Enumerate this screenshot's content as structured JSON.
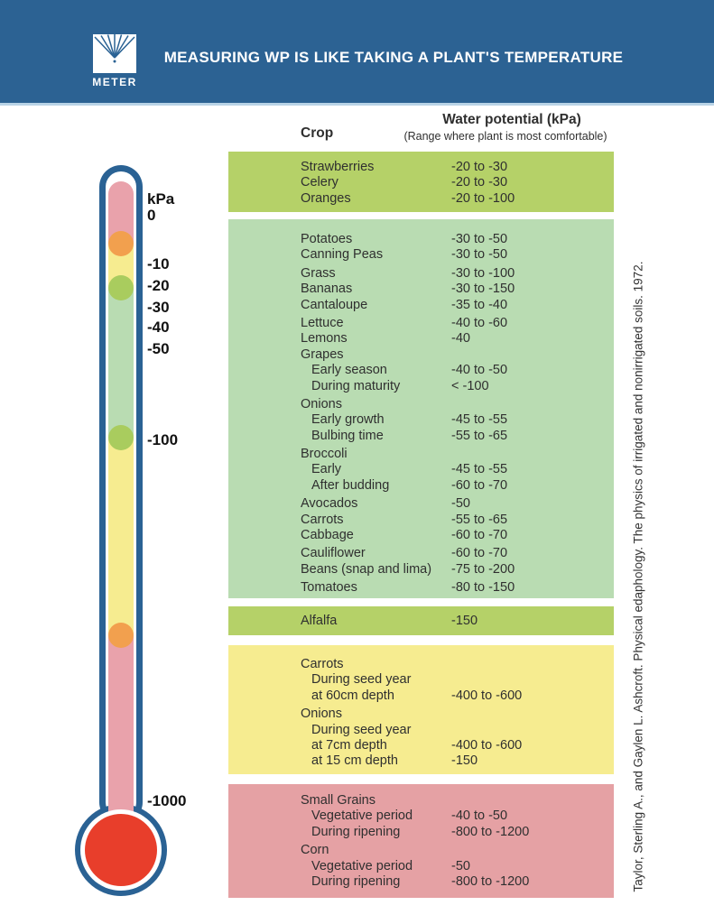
{
  "header": {
    "title": "MEASURING WP IS LIKE TAKING A PLANT'S TEMPERATURE",
    "logo_text": "METER"
  },
  "table": {
    "crop_header": "Crop",
    "wp_header": "Water potential (kPa)",
    "wp_subheader": "(Range where plant is most comfortable)",
    "blocks": [
      {
        "color": "yellow_green",
        "rows": [
          {
            "label": "Strawberries",
            "value": "-20 to -30"
          },
          {
            "label": "Celery",
            "value": "-20 to -30"
          },
          {
            "label": "Oranges",
            "value": "-20 to -100"
          }
        ]
      },
      {
        "color": "light_green",
        "rows": [
          {
            "label": "Potatoes",
            "value": "-30 to -50"
          },
          {
            "label": "Canning Peas",
            "value": "-30 to -50"
          },
          {
            "label": "Grass",
            "value": "-30 to -100",
            "gap": true
          },
          {
            "label": "Bananas",
            "value": "-30 to -150"
          },
          {
            "label": "Cantaloupe",
            "value": "-35 to -40"
          },
          {
            "label": "Lettuce",
            "value": "-40 to -60",
            "gap": true
          },
          {
            "label": "Lemons",
            "value": "-40"
          },
          {
            "label": "Grapes",
            "value": ""
          },
          {
            "label": "Early season",
            "value": "-40 to -50",
            "indent": true
          },
          {
            "label": "During maturity",
            "value": "< -100",
            "indent": true
          },
          {
            "label": "Onions",
            "value": "",
            "gap": true
          },
          {
            "label": "Early growth",
            "value": "-45 to -55",
            "indent": true
          },
          {
            "label": "Bulbing time",
            "value": "-55 to -65",
            "indent": true
          },
          {
            "label": "Broccoli",
            "value": "",
            "gap": true
          },
          {
            "label": "Early",
            "value": "-45 to -55",
            "indent": true
          },
          {
            "label": "After budding",
            "value": "-60 to -70",
            "indent": true
          },
          {
            "label": "Avocados",
            "value": "-50",
            "gap": true
          },
          {
            "label": "Carrots",
            "value": "-55 to -65"
          },
          {
            "label": "Cabbage",
            "value": "-60 to -70"
          },
          {
            "label": "Cauliflower",
            "value": "-60 to -70",
            "gap": true
          },
          {
            "label": "Beans (snap and lima)",
            "value": "-75 to -200"
          },
          {
            "label": "Tomatoes",
            "value": "-80 to -150",
            "gap": true
          }
        ]
      },
      {
        "color": "yellow_green",
        "rows": [
          {
            "label": "Alfalfa",
            "value": "-150"
          }
        ]
      },
      {
        "color": "yellow",
        "rows": [
          {
            "label": "Carrots",
            "value": ""
          },
          {
            "label": "During seed year",
            "value": "",
            "indent": true
          },
          {
            "label": "at 60cm depth",
            "value": "-400 to -600",
            "indent": true
          },
          {
            "label": "Onions",
            "value": "",
            "gap": true
          },
          {
            "label": "During seed year",
            "value": "",
            "indent": true
          },
          {
            "label": "at 7cm depth",
            "value": "-400 to -600",
            "indent": true
          },
          {
            "label": "at 15 cm depth",
            "value": "-150",
            "indent": true
          }
        ]
      },
      {
        "color": "pink",
        "rows": [
          {
            "label": "Small Grains",
            "value": ""
          },
          {
            "label": "Vegetative period",
            "value": "-40 to -50",
            "indent": true
          },
          {
            "label": "During ripening",
            "value": "-800 to -1200",
            "indent": true
          },
          {
            "label": "Corn",
            "value": "",
            "gap": true
          },
          {
            "label": "Vegetative period",
            "value": "-50",
            "indent": true
          },
          {
            "label": "During ripening",
            "value": "-800 to -1200",
            "indent": true
          }
        ]
      }
    ]
  },
  "thermometer": {
    "scale": [
      {
        "text": "kPa"
      },
      {
        "text": "0"
      },
      {
        "text": "-10"
      },
      {
        "text": "-20"
      },
      {
        "text": "-30"
      },
      {
        "text": "-40"
      },
      {
        "text": "-50"
      },
      {
        "text": "-100"
      },
      {
        "text": "-1000"
      }
    ]
  },
  "citation": "Taylor, Sterling A., and Gaylen L. Ashcroft. Physical edaphology. The physics of irrigated and nonirrigated soils. 1972.",
  "colors": {
    "header_bg": "#2c6293",
    "header_rule": "#b9d3e6",
    "blue": "#2a6294",
    "yellow_green": "#b5d168",
    "light_green": "#b9dcb2",
    "yellow": "#f6ec90",
    "pink": "#e5a1a4",
    "tube_pink": "#e9a2ab",
    "orange": "#f2a04e",
    "circle_green": "#a9cc5e",
    "red": "#e83e2b",
    "text": "#2f2f2f"
  }
}
